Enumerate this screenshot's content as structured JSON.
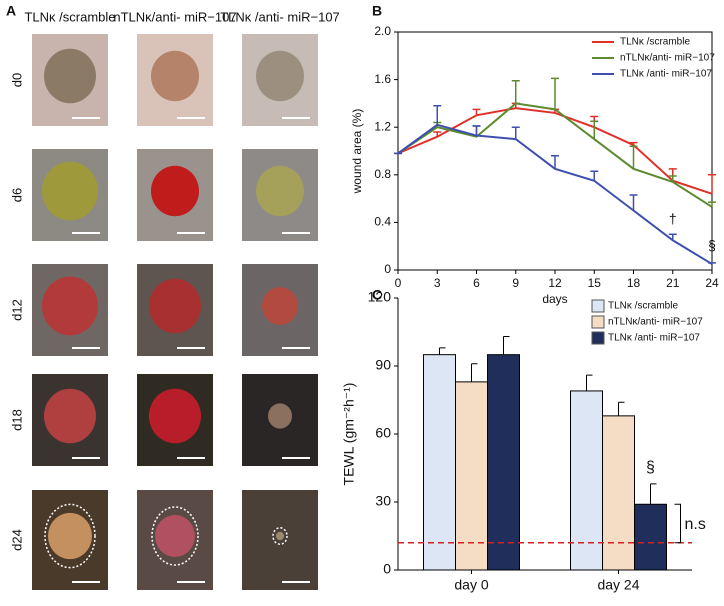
{
  "panel_a": {
    "label": "A",
    "columns": [
      "TLNκ /scramble",
      "nTLNκ/anti- miR−107",
      "TLNκ /anti- miR−107"
    ],
    "rows": [
      "d0",
      "d6",
      "d12",
      "d18",
      "d24"
    ]
  },
  "chart_data": [
    {
      "type": "line",
      "panel_label": "B",
      "x_label": "days",
      "y_label": "wound area (%)",
      "x": [
        0,
        3,
        6,
        9,
        12,
        15,
        18,
        21,
        24
      ],
      "xlim": [
        0,
        24
      ],
      "xticks": [
        0,
        3,
        6,
        9,
        12,
        15,
        18,
        21,
        24
      ],
      "ylim": [
        0,
        2
      ],
      "yticks": [
        0,
        0.4,
        0.8,
        1.2,
        1.6,
        {
          "value": 2,
          "label": "2.0"
        }
      ],
      "legend": "upper right",
      "series": [
        {
          "name": "TLNκ /scramble",
          "color": "#e0302a",
          "values": [
            0.98,
            1.12,
            1.3,
            1.36,
            1.32,
            1.2,
            1.05,
            0.75,
            0.64
          ],
          "errors": [
            0,
            0.04,
            0.05,
            0.04,
            0.03,
            0.09,
            0.02,
            0.1,
            0.16
          ]
        },
        {
          "name": "nTLNκ/anti- miR−107",
          "color": "#5c8a2e",
          "values": [
            0.98,
            1.2,
            1.12,
            1.4,
            1.35,
            1.1,
            0.85,
            0.74,
            0.53
          ],
          "errors": [
            0,
            0.04,
            0.09,
            0.19,
            0.26,
            0.15,
            0.19,
            0.05,
            0.04
          ]
        },
        {
          "name": "TLNκ /anti- miR−107",
          "color": "#3f4fb0",
          "values": [
            0.98,
            1.22,
            1.13,
            1.1,
            0.85,
            0.75,
            0.5,
            0.25,
            0.05
          ],
          "errors": [
            0,
            0.16,
            0.08,
            0.1,
            0.11,
            0.08,
            0.13,
            0.05,
            0.01
          ]
        }
      ],
      "annotations": [
        {
          "text": "†",
          "x": 21,
          "y": 0.42
        },
        {
          "text": "§",
          "x": 24,
          "y": 0.2
        }
      ]
    },
    {
      "type": "bar",
      "panel_label": "C",
      "y_label": "TEWL (gm⁻²h⁻¹)",
      "categories": [
        "day 0",
        "day 24"
      ],
      "ylim": [
        0,
        120
      ],
      "yticks": [
        0,
        30,
        60,
        90,
        120
      ],
      "legend": "upper right",
      "series": [
        {
          "name": "TLNκ /scramble",
          "color": "#dce6f5",
          "values": [
            95,
            79
          ],
          "errors": [
            3,
            7
          ]
        },
        {
          "name": "nTLNκ/anti- miR−107",
          "color": "#f5dcc4",
          "values": [
            83,
            68
          ],
          "errors": [
            8,
            6
          ]
        },
        {
          "name": "TLNκ /anti- miR−107",
          "color": "#1f2e5a",
          "values": [
            95,
            29
          ],
          "errors": [
            8,
            9
          ]
        }
      ],
      "reference_line": {
        "value": 12,
        "color": "#d62020"
      },
      "annotations": [
        {
          "text": "§",
          "category": 1,
          "series": 2,
          "y": 45
        },
        {
          "text": "n.s",
          "category": 1,
          "y": 20
        }
      ]
    }
  ]
}
